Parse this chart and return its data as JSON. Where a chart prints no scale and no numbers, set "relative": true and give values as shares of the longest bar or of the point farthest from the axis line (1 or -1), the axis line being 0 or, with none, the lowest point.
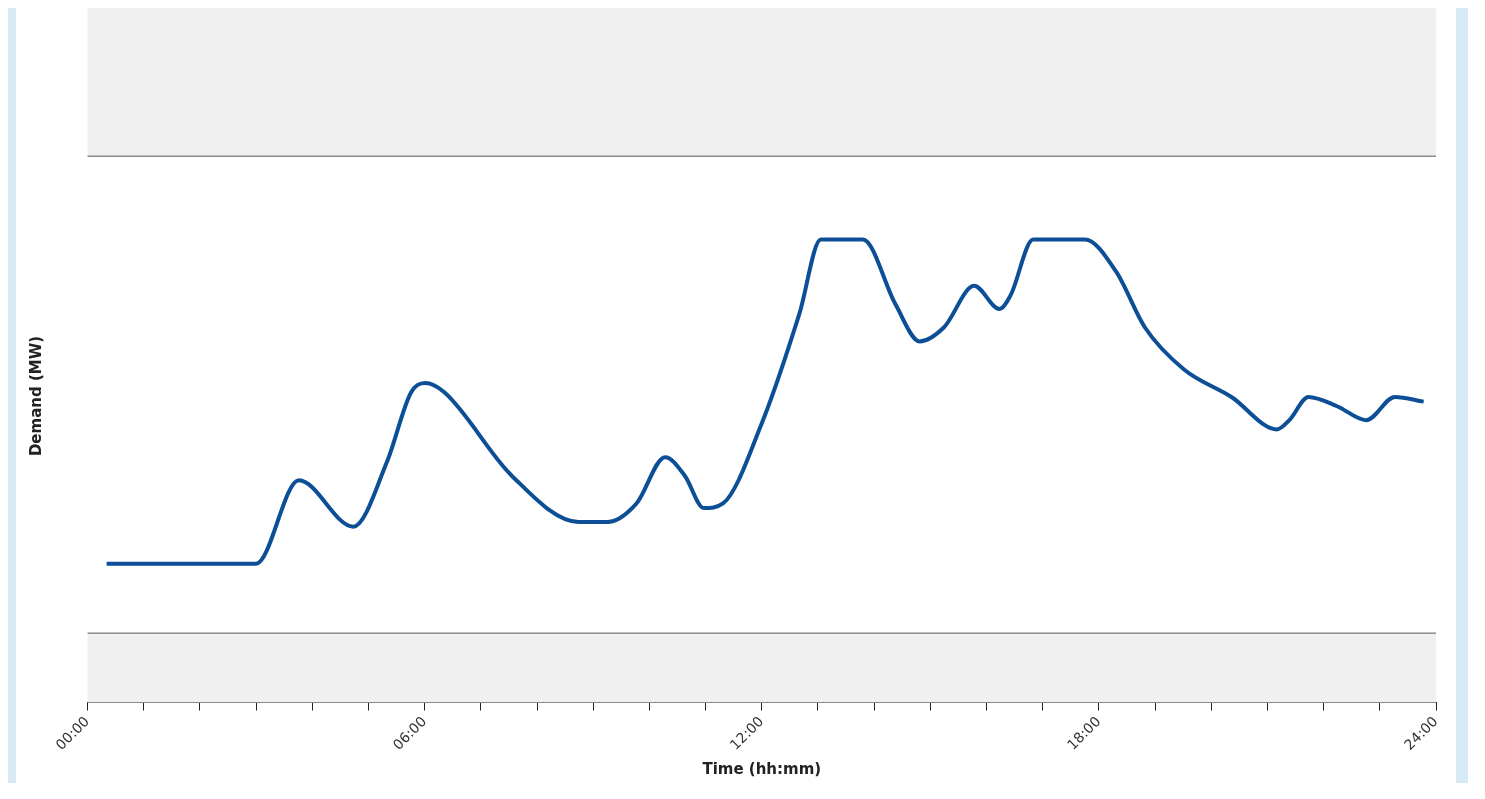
{
  "chart_data": {
    "type": "line",
    "relative": true,
    "xlabel": "Time (hh:mm)",
    "ylabel": "Demand (MW)",
    "legend": false,
    "grid": false,
    "marker": "none",
    "line_style": "solid",
    "xlim": [
      0,
      24
    ],
    "xticks": [
      {
        "value": 0,
        "label": "00:00"
      },
      {
        "value": 1,
        "label": null
      },
      {
        "value": 2,
        "label": null
      },
      {
        "value": 3,
        "label": null
      },
      {
        "value": 4,
        "label": null
      },
      {
        "value": 5,
        "label": null
      },
      {
        "value": 6,
        "label": "06:00"
      },
      {
        "value": 7,
        "label": null
      },
      {
        "value": 8,
        "label": null
      },
      {
        "value": 9,
        "label": null
      },
      {
        "value": 10,
        "label": null
      },
      {
        "value": 11,
        "label": null
      },
      {
        "value": 12,
        "label": "12:00"
      },
      {
        "value": 13,
        "label": null
      },
      {
        "value": 14,
        "label": null
      },
      {
        "value": 15,
        "label": null
      },
      {
        "value": 16,
        "label": null
      },
      {
        "value": 17,
        "label": null
      },
      {
        "value": 18,
        "label": "18:00"
      },
      {
        "value": 19,
        "label": null
      },
      {
        "value": 20,
        "label": null
      },
      {
        "value": 21,
        "label": null
      },
      {
        "value": 22,
        "label": null
      },
      {
        "value": 23,
        "label": null
      },
      {
        "value": 24,
        "label": "24:00"
      }
    ],
    "bands": [
      {
        "axis": "y",
        "from": 0,
        "to": 0.15,
        "color": "#f0f0f0"
      },
      {
        "axis": "y",
        "from": 1.18,
        "to": 1.5,
        "color": "#f0f0f0"
      }
    ],
    "ref_lines": [
      {
        "axis": "y",
        "value": 0.15,
        "color": "#555555"
      },
      {
        "axis": "y",
        "value": 1.18,
        "color": "#555555"
      }
    ],
    "series": [
      {
        "color": "#0d4f96",
        "x": [
          0.34,
          3.0,
          3.76,
          4.73,
          5.33,
          5.76,
          6.01,
          6.35,
          7.55,
          8.74,
          9.26,
          9.77,
          10.28,
          10.63,
          10.97,
          11.31,
          11.99,
          12.67,
          13.05,
          13.8,
          14.38,
          14.81,
          15.24,
          15.78,
          16.23,
          16.43,
          16.83,
          17.75,
          18.31,
          18.82,
          19.51,
          20.36,
          21.17,
          21.39,
          21.73,
          22.24,
          22.76,
          23.27,
          23.78
        ],
        "values": [
          0.3,
          0.3,
          0.48,
          0.38,
          0.52,
          0.67,
          0.69,
          0.67,
          0.49,
          0.39,
          0.39,
          0.43,
          0.53,
          0.49,
          0.42,
          0.43,
          0.6,
          0.84,
          1,
          1,
          0.86,
          0.78,
          0.81,
          0.9,
          0.85,
          0.88,
          1,
          1,
          0.93,
          0.81,
          0.72,
          0.66,
          0.59,
          0.61,
          0.66,
          0.64,
          0.61,
          0.66,
          0.65
        ]
      }
    ]
  }
}
